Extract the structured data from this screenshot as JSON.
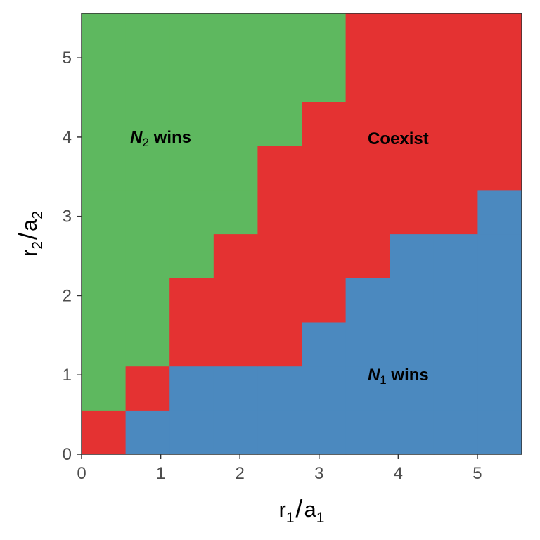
{
  "chart_data": {
    "type": "heatmap",
    "title": "",
    "xlabel": {
      "base": "r",
      "sub": "1",
      "sep": "/",
      "base2": "a",
      "sub2": "1"
    },
    "ylabel": {
      "base": "r",
      "sub": "2",
      "sep": "/",
      "base2": "a",
      "sub2": "2"
    },
    "xlim": [
      0,
      5.56
    ],
    "ylim": [
      0,
      5.56
    ],
    "x_ticks": [
      "0",
      "1",
      "2",
      "3",
      "4",
      "5"
    ],
    "y_ticks": [
      "0",
      "1",
      "2",
      "3",
      "4",
      "5"
    ],
    "grid": false,
    "legend": "none",
    "cell_size": 0.556,
    "categories": [
      "N2 wins",
      "Coexist",
      "N1 wins"
    ],
    "colors": {
      "N2 wins": "#5EB85F",
      "Coexist": "#E43232",
      "N1 wins": "#4B89BF"
    },
    "category_codes": {
      "G": "N2 wins",
      "R": "Coexist",
      "B": "N1 wins"
    },
    "rows_bottom_to_top": [
      "RBBBBBBBBB",
      "GRBBBBBBBB",
      "GGRRRBBBBB",
      "GGRRRRBBBB",
      "GGGRRRRBBB",
      "GGGGRRRRRB",
      "GGGGRRRRRR",
      "GGGGGRRRRR",
      "GGGGGGRRRR",
      "GGGGGGRRRR"
    ],
    "annotations": [
      {
        "italic": "N",
        "sub": "2",
        "text": " wins",
        "x": 1.0,
        "y": 4.0
      },
      {
        "italic": "",
        "sub": "",
        "text": "Coexist",
        "x": 4.0,
        "y": 3.98
      },
      {
        "italic": "N",
        "sub": "1",
        "text": " wins",
        "x": 4.0,
        "y": 1.0
      }
    ]
  }
}
